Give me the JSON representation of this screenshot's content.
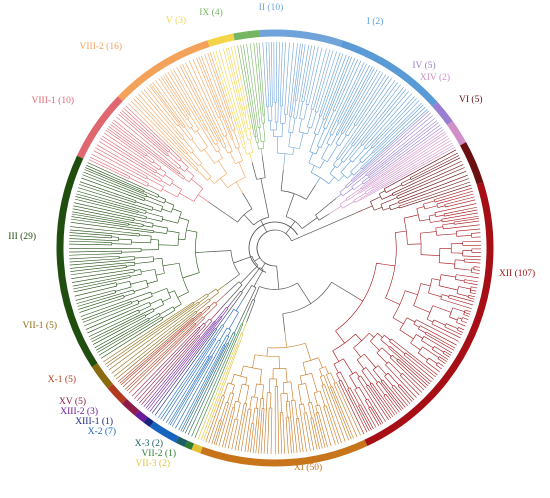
{
  "tree": {
    "clades": [
      {
        "label": "XII (107)",
        "color": "#a50f15",
        "start": -17.5,
        "end": 65.0
      },
      {
        "label": "XI (50)",
        "color": "#c8741a",
        "start": 65.0,
        "end": 110.0
      },
      {
        "label": "VII-3 (2)",
        "color": "#e3c235",
        "start": 110.0,
        "end": 112.5
      },
      {
        "label": "VII-2 (1)",
        "color": "#2e7d32",
        "start": 112.5,
        "end": 114.5
      },
      {
        "label": "X-3 (2)",
        "color": "#1b5e63",
        "start": 114.5,
        "end": 117.0
      },
      {
        "label": "X-2 (7)",
        "color": "#1565c0",
        "start": 117.0,
        "end": 125.0
      },
      {
        "label": "XIII-1 (1)",
        "color": "#1a237e",
        "start": 125.0,
        "end": 127.0
      },
      {
        "label": "XIII-2 (3)",
        "color": "#6a1b9a",
        "start": 127.0,
        "end": 130.0
      },
      {
        "label": "XV (5)",
        "color": "#8e1b4a",
        "start": 130.0,
        "end": 134.5
      },
      {
        "label": "X-1 (5)",
        "color": "#b23a1e",
        "start": 134.5,
        "end": 140.0
      },
      {
        "label": "VII-1 (5)",
        "color": "#8b6a10",
        "start": 140.0,
        "end": 147.0
      },
      {
        "label": "III (29)",
        "color": "#1f4e0f",
        "start": 147.0,
        "end": 205.0
      },
      {
        "label": "VIII-1 (10)",
        "color": "#e06670",
        "start": 205.0,
        "end": 224.0
      },
      {
        "label": "VIII-2 (16)",
        "color": "#f4a25a",
        "start": 224.0,
        "end": 252.0
      },
      {
        "label": "V (3)",
        "color": "#f5d44a",
        "start": 252.0,
        "end": 259.0
      },
      {
        "label": "IX (4)",
        "color": "#76b562",
        "start": 259.0,
        "end": 266.0
      },
      {
        "label": "II (10)",
        "color": "#6fa3d9",
        "start": 266.0,
        "end": 288.0
      },
      {
        "label": "I (2)",
        "color": "#5b9bd5",
        "start": 288.0,
        "end": 318.0
      },
      {
        "label": "IV (5)",
        "color": "#9a7fd1",
        "start": 318.0,
        "end": 324.5
      },
      {
        "label": "XIV (2)",
        "color": "#d08fc8",
        "start": 324.5,
        "end": 331.0
      },
      {
        "label": "VI (5)",
        "color": "#6b1010",
        "start": 331.0,
        "end": 342.5
      }
    ]
  }
}
